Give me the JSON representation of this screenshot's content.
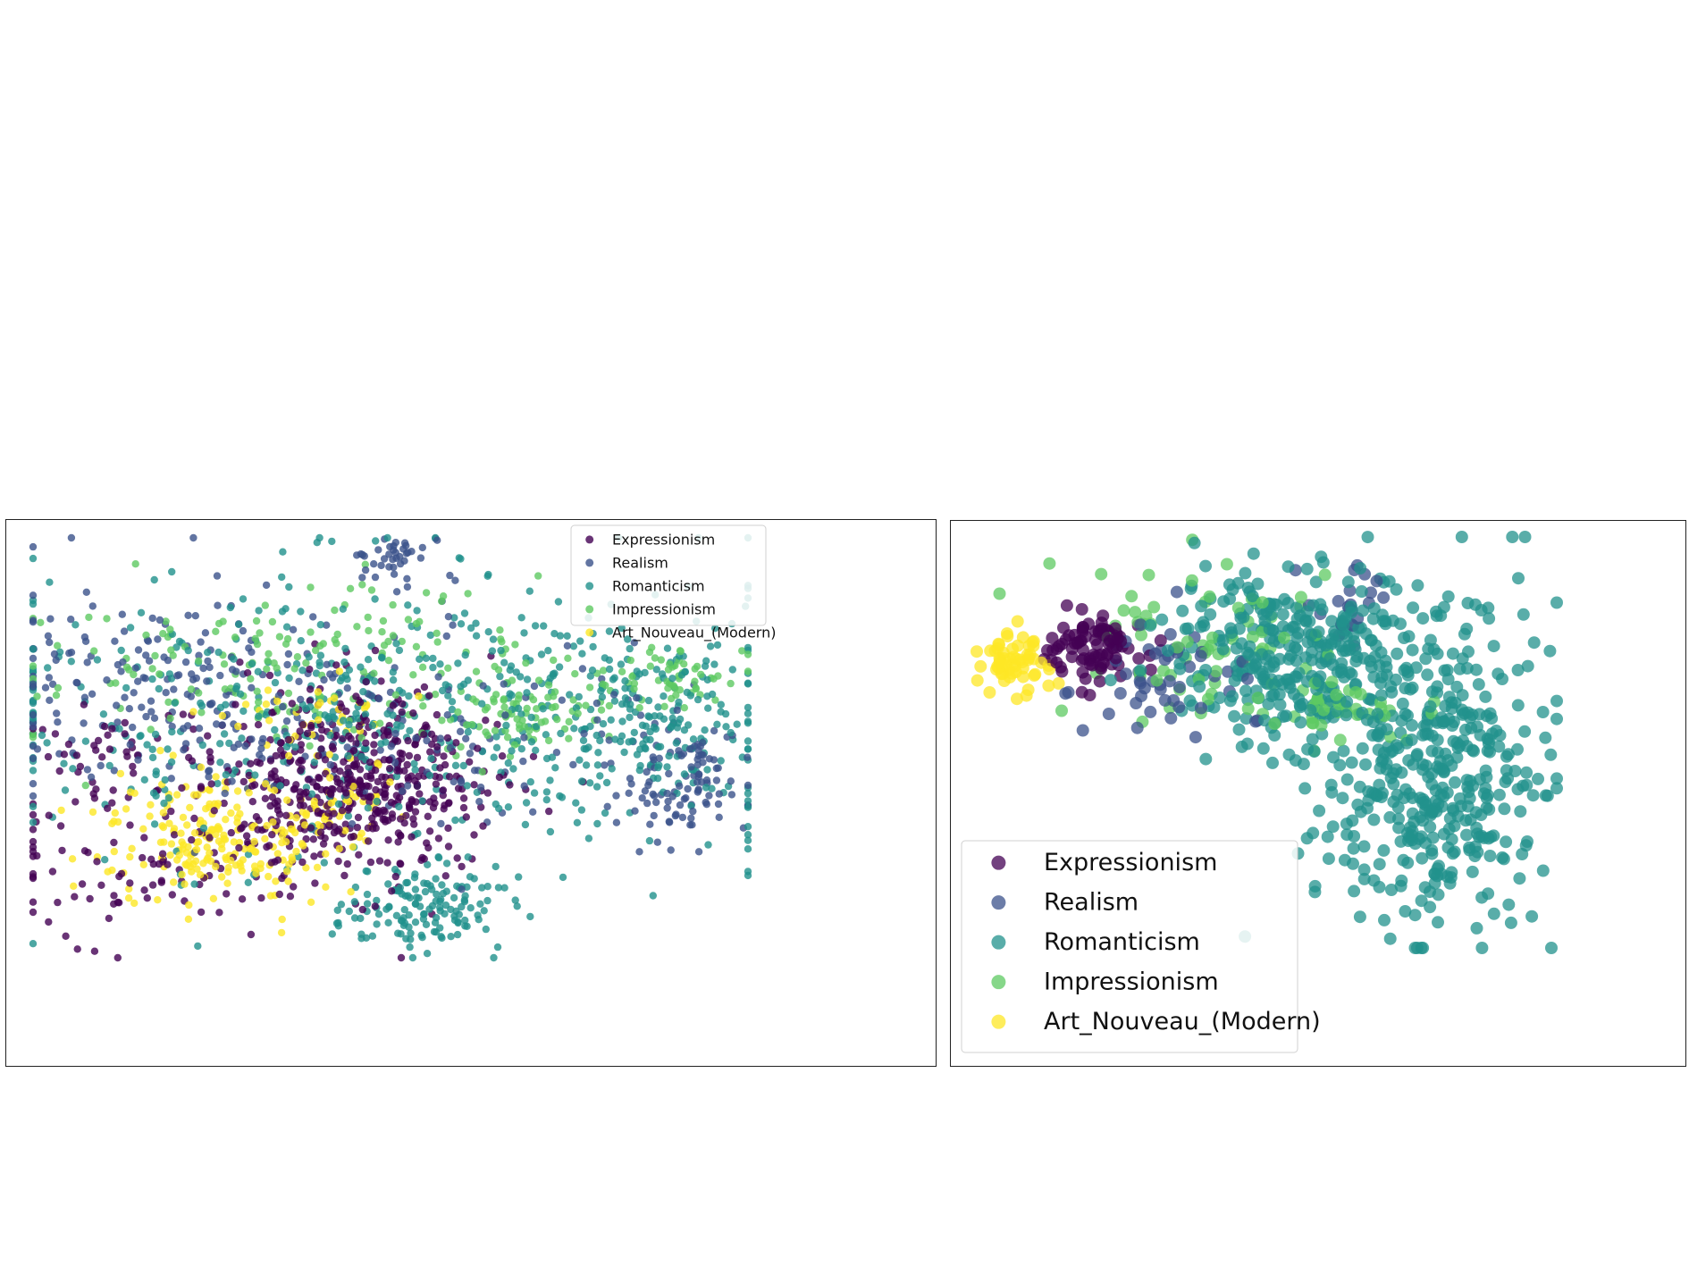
{
  "figure": {
    "background": "#ffffff"
  },
  "series_colors": {
    "Expressionism": "#440154",
    "Realism": "#3b528b",
    "Romanticism": "#21918c",
    "Impressionism": "#5ec962",
    "Art_Nouveau_(Modern)": "#fde725"
  },
  "chart_data": [
    {
      "type": "scatter",
      "panel": "left",
      "title": "",
      "xlabel": "",
      "ylabel": "",
      "axes_visible": false,
      "grid": false,
      "legend_position": "top-right",
      "xlim": [
        0,
        100
      ],
      "ylim": [
        0,
        100
      ],
      "legend": [
        "Expressionism",
        "Realism",
        "Romanticism",
        "Impressionism",
        "Art_Nouveau_(Modern)"
      ],
      "series": [
        {
          "name": "Expressionism",
          "clusters": [
            [
              44,
              42,
              8,
              12,
              420
            ],
            [
              20,
              24,
              14,
              10,
              120
            ],
            [
              12,
              50,
              6,
              6,
              40
            ],
            [
              55,
              40,
              8,
              6,
              60
            ]
          ]
        },
        {
          "name": "Realism",
          "clusters": [
            [
              18,
              65,
              14,
              12,
              160
            ],
            [
              50,
              94,
              3,
              4,
              40
            ],
            [
              90,
              42,
              5,
              8,
              110
            ],
            [
              48,
              55,
              22,
              14,
              140
            ]
          ]
        },
        {
          "name": "Romanticism",
          "clusters": [
            [
              48,
              58,
              30,
              18,
              520
            ],
            [
              54,
              12,
              6,
              5,
              140
            ],
            [
              86,
              55,
              7,
              10,
              140
            ]
          ]
        },
        {
          "name": "Impressionism",
          "clusters": [
            [
              40,
              70,
              22,
              10,
              180
            ],
            [
              67,
              58,
              5,
              5,
              70
            ],
            [
              87,
              66,
              6,
              4,
              60
            ]
          ]
        },
        {
          "name": "Art_Nouveau_(Modern)",
          "clusters": [
            [
              26,
              28,
              8,
              8,
              210
            ],
            [
              41,
              35,
              5,
              5,
              50
            ],
            [
              40,
              58,
              6,
              5,
              40
            ]
          ]
        }
      ]
    },
    {
      "type": "scatter",
      "panel": "right",
      "title": "",
      "xlabel": "",
      "ylabel": "",
      "axes_visible": false,
      "grid": false,
      "legend_position": "bottom-left",
      "xlim": [
        0,
        100
      ],
      "ylim": [
        0,
        100
      ],
      "legend": [
        "Expressionism",
        "Realism",
        "Romanticism",
        "Impressionism",
        "Art_Nouveau_(Modern)"
      ],
      "series": [
        {
          "name": "Expressionism",
          "clusters": [
            [
              22,
              73,
              4,
              4,
              90
            ]
          ]
        },
        {
          "name": "Realism",
          "clusters": [
            [
              35,
              65,
              8,
              8,
              50
            ],
            [
              65,
              85,
              4,
              4,
              20
            ]
          ]
        },
        {
          "name": "Romanticism",
          "clusters": [
            [
              55,
              72,
              10,
              10,
              300
            ],
            [
              78,
              42,
              10,
              20,
              420
            ]
          ]
        },
        {
          "name": "Impressionism",
          "clusters": [
            [
              40,
              75,
              10,
              10,
              70
            ],
            [
              65,
              57,
              6,
              4,
              40
            ]
          ]
        },
        {
          "name": "Art_Nouveau_(Modern)",
          "clusters": [
            [
              8,
              70,
              3,
              4,
              60
            ]
          ]
        }
      ]
    }
  ]
}
